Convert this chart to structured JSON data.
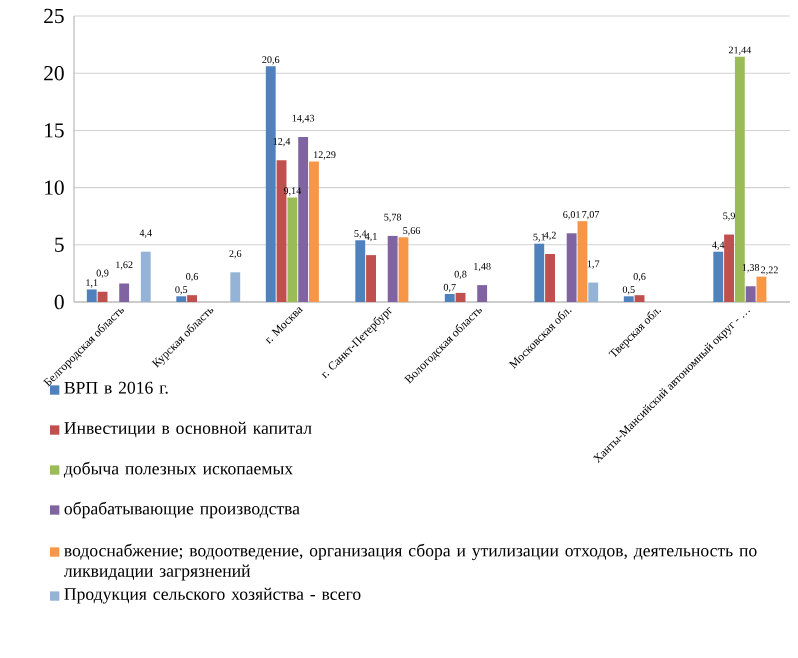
{
  "chart_data": {
    "type": "bar",
    "categories": [
      "Белгородская область",
      "Курская область",
      "г. Москва",
      "г. Санкт-Петербург",
      "Вологодская область",
      "Московская обл.",
      "Тверская обл.",
      "Ханты-Мансийский автономный округ - …"
    ],
    "series": [
      {
        "name": "ВРП в 2016 г.",
        "color": "#4f81bd",
        "values": [
          1.1,
          0.5,
          20.6,
          5.4,
          0.7,
          5.1,
          0.5,
          4.4
        ],
        "value_labels": [
          "1,1",
          "0,5",
          "20,6",
          "5,4",
          "0,7",
          "5,1",
          "0,5",
          "4,4"
        ]
      },
      {
        "name": "Инвестиции в основной капитал",
        "color": "#c0504d",
        "values": [
          0.9,
          0.6,
          12.4,
          4.1,
          0.8,
          4.2,
          0.6,
          5.9
        ],
        "value_labels": [
          "0,9",
          "0,6",
          "12,4",
          "4,1",
          "0,8",
          "4,2",
          "0,6",
          "5,9"
        ]
      },
      {
        "name": "добыча полезных ископаемых",
        "color": "#9bbb59",
        "values": [
          null,
          null,
          9.14,
          null,
          null,
          null,
          null,
          21.44
        ],
        "value_labels": [
          null,
          null,
          "9,14",
          null,
          null,
          null,
          null,
          "21,44"
        ]
      },
      {
        "name": "обрабатывающие производства",
        "color": "#8064a2",
        "values": [
          1.62,
          null,
          14.43,
          5.78,
          1.48,
          6.01,
          null,
          1.38
        ],
        "value_labels": [
          "1,62",
          null,
          "14,43",
          "5,78",
          "1,48",
          "6,01",
          null,
          "1,38"
        ]
      },
      {
        "name": "водоснабжение; водоотведение, организация сбора и утилизации отходов, деятельность по ликвидации загрязнений",
        "color": "#f79646",
        "values": [
          null,
          null,
          12.29,
          5.66,
          null,
          7.07,
          null,
          2.22
        ],
        "value_labels": [
          null,
          null,
          "12,29",
          "5,66",
          null,
          "7,07",
          null,
          "2,22"
        ]
      },
      {
        "name": "Продукция сельского хозяйства - всего",
        "color": "#95b3d7",
        "values": [
          4.4,
          2.6,
          null,
          null,
          null,
          1.7,
          null,
          null
        ],
        "value_labels": [
          "4,4",
          "2,6",
          null,
          null,
          null,
          "1,7",
          null,
          null
        ]
      }
    ],
    "ylim": [
      0,
      25
    ],
    "yticks": [
      0,
      5,
      10,
      15,
      20,
      25
    ],
    "grid": "y",
    "legend": "bottom"
  }
}
